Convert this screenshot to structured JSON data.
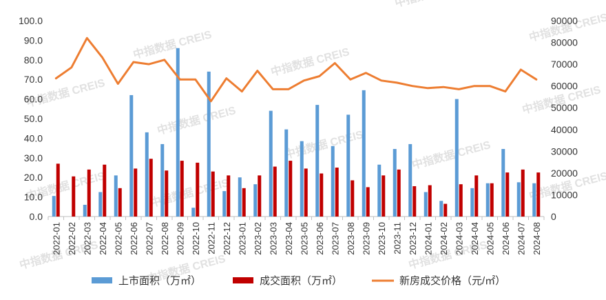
{
  "chart_data": {
    "type": "bar",
    "title": "",
    "categories": [
      "2022-01",
      "2022-02",
      "2022-03",
      "2022-04",
      "2022-05",
      "2022-06",
      "2022-07",
      "2022-08",
      "2022-09",
      "2022-10",
      "2022-11",
      "2022-12",
      "2023-01",
      "2023-02",
      "2023-03",
      "2023-04",
      "2023-05",
      "2023-06",
      "2023-07",
      "2023-08",
      "2023-09",
      "2023-10",
      "2023-11",
      "2023-12",
      "2024-01",
      "2024-02",
      "2024-03",
      "2024-04",
      "2024-05",
      "2024-06",
      "2024-07",
      "2024-08"
    ],
    "series": [
      {
        "name": "上市面积（万㎡）",
        "type": "bar",
        "axis": "left",
        "color": "#5b9bd5",
        "values": [
          10.5,
          0,
          6.0,
          12.5,
          21.0,
          62.0,
          43.0,
          37.0,
          86.0,
          4.5,
          74.0,
          13.0,
          20.0,
          16.5,
          54.0,
          44.5,
          38.5,
          57.0,
          36.0,
          52.0,
          64.5,
          26.5,
          34.5,
          37.0,
          12.5,
          8.0,
          60.0,
          14.5,
          17.0,
          34.5,
          17.5,
          17.0
        ]
      },
      {
        "name": "成交面积（万㎡）",
        "type": "bar",
        "axis": "left",
        "color": "#c00000",
        "values": [
          27.0,
          20.5,
          24.0,
          26.5,
          14.5,
          24.5,
          29.5,
          23.5,
          28.5,
          27.5,
          23.0,
          21.0,
          14.5,
          21.0,
          25.5,
          28.5,
          24.5,
          22.0,
          25.0,
          18.5,
          15.0,
          21.0,
          24.0,
          15.5,
          16.0,
          6.5,
          16.5,
          21.0,
          17.0,
          22.5,
          24.0,
          22.5
        ]
      },
      {
        "name": "新房成交价格（元/㎡）",
        "type": "line",
        "axis": "right",
        "color": "#ed7d31",
        "values": [
          63500,
          68500,
          82000,
          73000,
          61000,
          71000,
          70000,
          72000,
          63000,
          63000,
          53000,
          63500,
          57500,
          67000,
          58500,
          58500,
          62500,
          64500,
          70500,
          63000,
          66000,
          62500,
          61500,
          60000,
          59000,
          59500,
          58500,
          60000,
          60000,
          57500,
          67500,
          63000
        ]
      }
    ],
    "y_left": {
      "min": 0,
      "max": 100,
      "step": 10,
      "tick_labels": [
        "0.0",
        "10.0",
        "20.0",
        "30.0",
        "40.0",
        "50.0",
        "60.0",
        "70.0",
        "80.0",
        "90.0",
        "100.0"
      ]
    },
    "y_right": {
      "min": 0,
      "max": 90000,
      "step": 10000,
      "tick_labels": [
        "0",
        "10000",
        "20000",
        "30000",
        "40000",
        "50000",
        "60000",
        "70000",
        "80000",
        "90000"
      ]
    },
    "xlabel": "",
    "ylabel": "",
    "legend": {
      "position": "bottom"
    },
    "grid": false
  },
  "watermark": {
    "text_cn": "中指数据",
    "text_en": "CREIS"
  }
}
